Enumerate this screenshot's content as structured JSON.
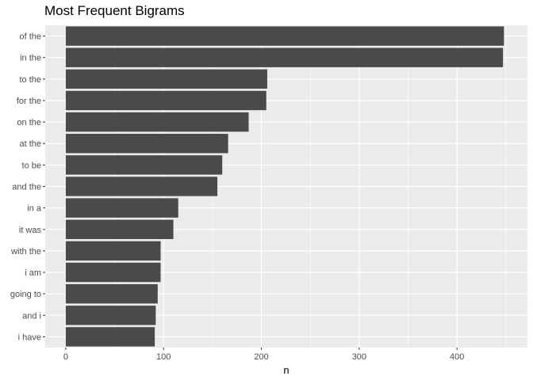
{
  "chart_data": {
    "type": "bar",
    "orientation": "horizontal",
    "title": "Most Frequent Bigrams",
    "xlabel": "n",
    "ylabel": "",
    "categories": [
      "of the",
      "in the",
      "to the",
      "for the",
      "on the",
      "at the",
      "to be",
      "and the",
      "in a",
      "it was",
      "with the",
      "i am",
      "going to",
      "and i",
      "i have"
    ],
    "values": [
      448,
      447,
      206,
      205,
      187,
      166,
      160,
      155,
      115,
      110,
      97,
      97,
      94,
      92,
      91
    ],
    "xlim": [
      -21,
      472
    ],
    "xticks": [
      0,
      100,
      200,
      300,
      400
    ],
    "xminor": [
      50,
      150,
      250,
      350,
      450
    ],
    "grid": true,
    "bar_color": "#4a4a4a",
    "panel_color": "#ebebeb"
  }
}
